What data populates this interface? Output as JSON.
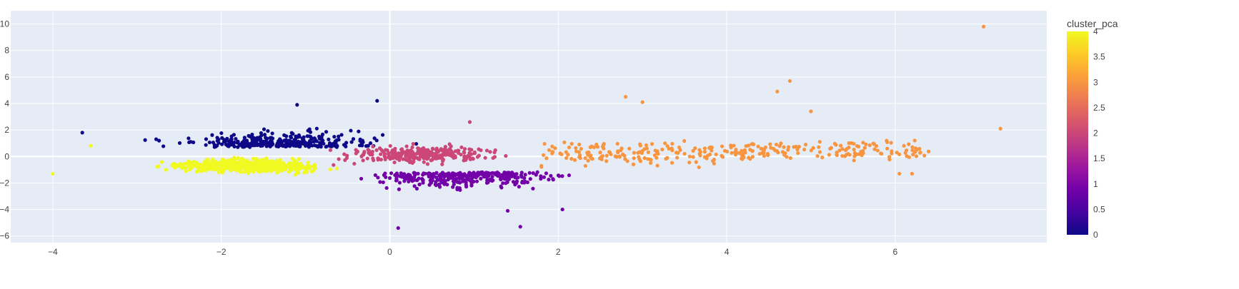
{
  "chart_data": {
    "type": "scatter",
    "title": "",
    "xlabel": "",
    "ylabel": "",
    "xlim": [
      -4.5,
      7.8
    ],
    "ylim": [
      -6.5,
      11
    ],
    "x_ticks": [
      -4,
      -2,
      0,
      2,
      4,
      6
    ],
    "x_tick_labels": [
      "−4",
      "−2",
      "0",
      "2",
      "4",
      "6"
    ],
    "y_ticks": [
      -6,
      -4,
      -2,
      0,
      2,
      4,
      6,
      8,
      10
    ],
    "y_tick_labels": [
      "−6",
      "−4",
      "−2",
      "0",
      "2",
      "4",
      "6",
      "8",
      "10"
    ],
    "grid": true,
    "plot_bgcolor": "#E5ECF6",
    "gridcolor": "#FFFFFF",
    "colorbar": {
      "title": "cluster_pca",
      "min": 0,
      "max": 4,
      "ticks": [
        0,
        0.5,
        1,
        1.5,
        2,
        2.5,
        3,
        3.5,
        4
      ],
      "tick_labels": [
        "0",
        "0.5",
        "1",
        "1.5",
        "2",
        "2.5",
        "3",
        "3.5",
        "4"
      ],
      "colorscale": [
        "#0d0887",
        "#46039f",
        "#7201a8",
        "#9c179e",
        "#bd3786",
        "#d8576b",
        "#ed7953",
        "#fb9f3a",
        "#fdca26",
        "#f0f921"
      ]
    },
    "clusters": [
      {
        "value": 0,
        "color": "#0d0887",
        "x_range": [
          -3.8,
          1.0
        ],
        "y_center": 1.2,
        "y_spread": 0.85,
        "count": 320
      },
      {
        "value": 1,
        "color": "#7201a8",
        "x_range": [
          -0.8,
          2.5
        ],
        "y_center": -1.7,
        "y_spread": 0.9,
        "count": 320
      },
      {
        "value": 2,
        "color": "#cc4778",
        "x_range": [
          -1.0,
          2.4
        ],
        "y_center": 0.2,
        "y_spread": 0.65,
        "count": 300
      },
      {
        "value": 3,
        "color": "#f89540",
        "x_range": [
          1.8,
          6.4
        ],
        "y_center": 0.3,
        "y_spread": 0.9,
        "count": 300
      },
      {
        "value": 4,
        "color": "#f0f921",
        "x_range": [
          -4.0,
          -0.4
        ],
        "y_center": -0.7,
        "y_spread": 0.6,
        "count": 650
      }
    ],
    "notable_points": [
      {
        "x": 7.05,
        "y": 9.8,
        "cluster": 3
      },
      {
        "x": 7.25,
        "y": 2.1,
        "cluster": 3
      },
      {
        "x": 4.75,
        "y": 5.7,
        "cluster": 3
      },
      {
        "x": 4.6,
        "y": 4.9,
        "cluster": 3
      },
      {
        "x": 2.8,
        "y": 4.5,
        "cluster": 3
      },
      {
        "x": 3.0,
        "y": 4.1,
        "cluster": 3
      },
      {
        "x": 5.0,
        "y": 3.4,
        "cluster": 3
      },
      {
        "x": 6.3,
        "y": 0.3,
        "cluster": 3
      },
      {
        "x": 6.2,
        "y": -1.3,
        "cluster": 3
      },
      {
        "x": 6.05,
        "y": -1.3,
        "cluster": 3
      },
      {
        "x": -1.1,
        "y": 3.9,
        "cluster": 0
      },
      {
        "x": -0.15,
        "y": 4.2,
        "cluster": 0
      },
      {
        "x": -3.65,
        "y": 1.8,
        "cluster": 0
      },
      {
        "x": 0.95,
        "y": 2.6,
        "cluster": 2
      },
      {
        "x": 0.1,
        "y": -5.4,
        "cluster": 1
      },
      {
        "x": 1.55,
        "y": -5.3,
        "cluster": 1
      },
      {
        "x": 2.05,
        "y": -4.0,
        "cluster": 1
      },
      {
        "x": 1.4,
        "y": -4.1,
        "cluster": 1
      },
      {
        "x": -4.0,
        "y": -1.3,
        "cluster": 4
      },
      {
        "x": -3.55,
        "y": 0.8,
        "cluster": 4
      }
    ]
  }
}
